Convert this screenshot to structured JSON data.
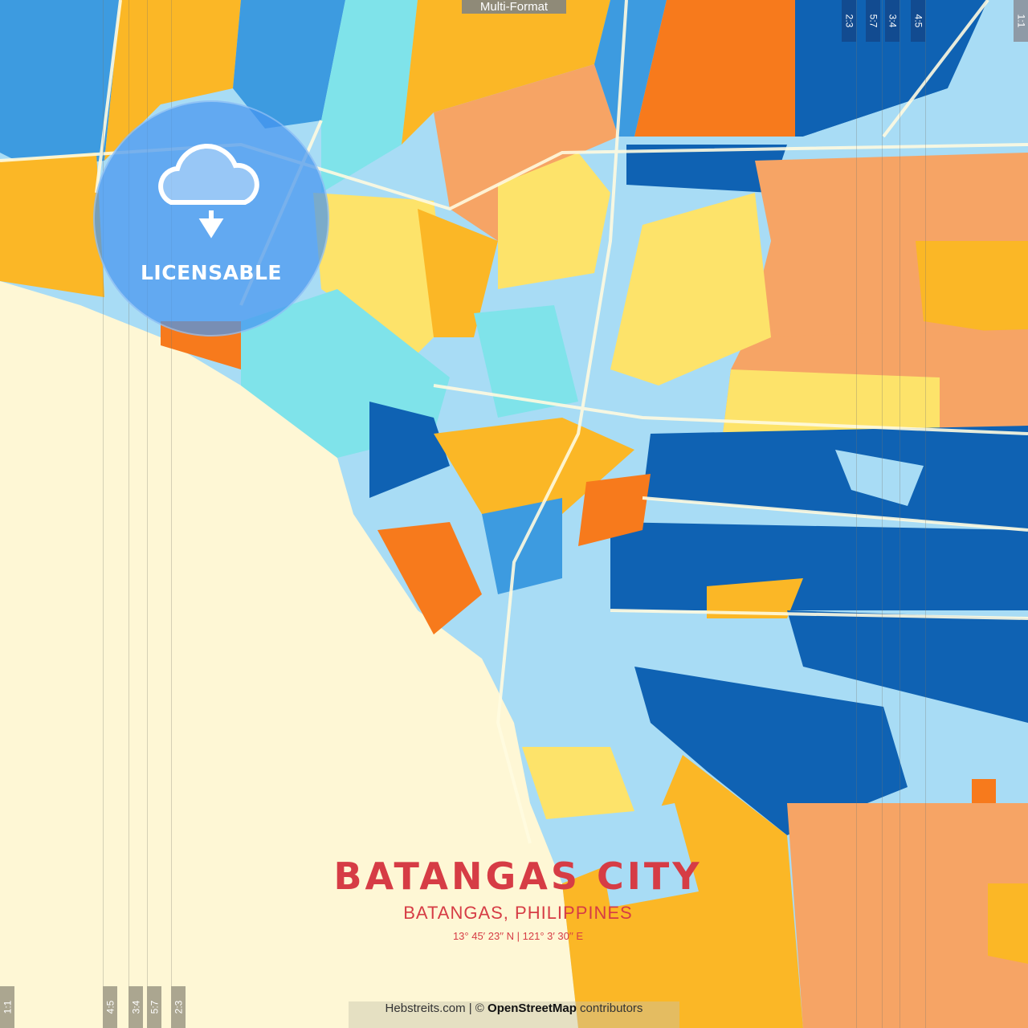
{
  "header_tab": "Multi-Format",
  "badge": {
    "icon": "cloud-download-icon",
    "label": "LICENSABLE"
  },
  "title": "BATANGAS CITY",
  "subtitle": "BATANGAS, PHILIPPINES",
  "coordinates": "13°  45′  23′′ N  |  121°  3′  30′′ E",
  "credit": {
    "site": "Hebstreits.com",
    "separator": " | © ",
    "osm": "OpenStreetMap",
    "suffix": " contributors"
  },
  "crop_marks_top": [
    "2:3",
    "5:7",
    "3:4",
    "4:5",
    "1:1"
  ],
  "crop_marks_bottom": [
    "1:1",
    "4:5",
    "3:4",
    "5:7",
    "2:3"
  ],
  "colors": {
    "sea": "#fef7d5",
    "light_blue": "#a8dcf5",
    "cyan": "#7fe3ea",
    "mid_blue": "#3d9be0",
    "dark_blue": "#0f62b3",
    "yellow": "#fbb726",
    "light_yellow": "#fde36a",
    "peach": "#f6a465",
    "orange": "#f77a1c",
    "title_red": "#d63c45"
  }
}
